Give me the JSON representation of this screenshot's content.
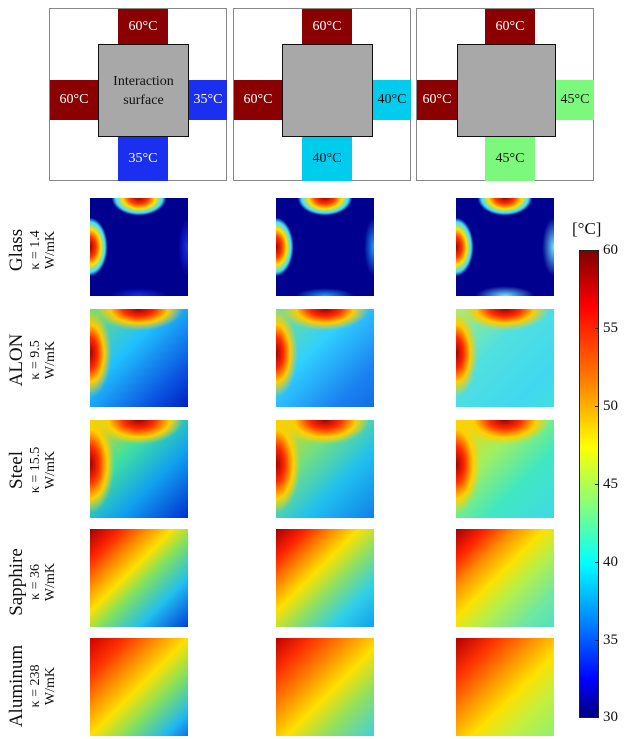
{
  "schemes": [
    {
      "top": "60°C",
      "left": "60°C",
      "right": "35°C",
      "bottom": "35°C",
      "center_line1": "Interaction",
      "center_line2": "surface",
      "colors": {
        "top": "#8b0000",
        "left": "#8b0000",
        "right": "#1a2ff0",
        "bottom": "#1a2ff0"
      }
    },
    {
      "top": "60°C",
      "left": "60°C",
      "right": "40°C",
      "bottom": "40°C",
      "center_line1": "",
      "center_line2": "",
      "colors": {
        "top": "#8b0000",
        "left": "#8b0000",
        "right": "#00ccee",
        "bottom": "#00ccee"
      }
    },
    {
      "top": "60°C",
      "left": "60°C",
      "right": "45°C",
      "bottom": "45°C",
      "center_line1": "",
      "center_line2": "",
      "colors": {
        "top": "#8b0000",
        "left": "#8b0000",
        "right": "#7cf87c",
        "bottom": "#7cf87c"
      }
    }
  ],
  "materials": [
    {
      "name": "Glass",
      "kappa": "κ = 1.4",
      "unit": "W/mK"
    },
    {
      "name": "ALON",
      "kappa": "κ = 9.5",
      "unit": "W/mK"
    },
    {
      "name": "Steel",
      "kappa": "κ = 15.5",
      "unit": "W/mK"
    },
    {
      "name": "Sapphire",
      "kappa": "κ = 36",
      "unit": "W/mK"
    },
    {
      "name": "Aluminum",
      "kappa": "κ = 238",
      "unit": "W/mK"
    }
  ],
  "colorbar": {
    "unit": "[°C]",
    "ticks": [
      "60",
      "55",
      "50",
      "45",
      "40",
      "35",
      "30"
    ],
    "min": 30,
    "max": 60
  }
}
